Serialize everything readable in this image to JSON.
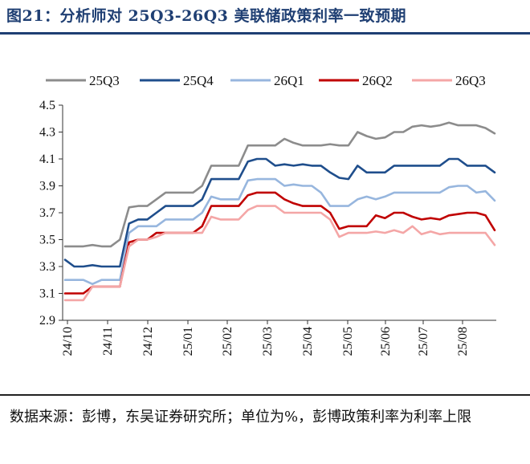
{
  "title": "图21：分析师对 25Q3-26Q3 美联储政策利率一致预期",
  "source": "数据来源：彭博，东吴证券研究所；单位为%，彭博政策利率为利率上限",
  "chart_data": {
    "type": "line",
    "ylim": [
      2.9,
      4.5
    ],
    "yticks": [
      "4.5",
      "4.3",
      "4.1",
      "3.9",
      "3.7",
      "3.5",
      "3.3",
      "3.1",
      "2.9"
    ],
    "xticks": [
      "24/10",
      "24/11",
      "24/12",
      "25/01",
      "25/02",
      "25/03",
      "25/04",
      "25/05",
      "25/06",
      "25/07",
      "25/08"
    ],
    "legend_position": "top",
    "grid": false,
    "series": [
      {
        "name": "25Q3",
        "color": "#8c8c8c",
        "values": [
          3.45,
          3.45,
          3.45,
          3.46,
          3.45,
          3.45,
          3.5,
          3.74,
          3.75,
          3.75,
          3.8,
          3.85,
          3.85,
          3.85,
          3.85,
          3.9,
          4.05,
          4.05,
          4.05,
          4.05,
          4.2,
          4.2,
          4.2,
          4.2,
          4.25,
          4.22,
          4.2,
          4.2,
          4.2,
          4.21,
          4.2,
          4.2,
          4.3,
          4.27,
          4.25,
          4.26,
          4.3,
          4.3,
          4.34,
          4.35,
          4.34,
          4.35,
          4.37,
          4.35,
          4.35,
          4.35,
          4.33,
          4.29
        ]
      },
      {
        "name": "25Q4",
        "color": "#1f4e8c",
        "values": [
          3.35,
          3.3,
          3.3,
          3.31,
          3.3,
          3.3,
          3.3,
          3.62,
          3.65,
          3.65,
          3.7,
          3.75,
          3.75,
          3.75,
          3.75,
          3.8,
          3.95,
          3.95,
          3.95,
          3.95,
          4.08,
          4.1,
          4.1,
          4.05,
          4.06,
          4.05,
          4.06,
          4.05,
          4.05,
          4.0,
          3.96,
          3.95,
          4.05,
          4.0,
          4.0,
          4.0,
          4.05,
          4.05,
          4.05,
          4.05,
          4.05,
          4.05,
          4.1,
          4.1,
          4.05,
          4.05,
          4.05,
          4.0
        ]
      },
      {
        "name": "26Q1",
        "color": "#97b6de",
        "values": [
          3.2,
          3.2,
          3.2,
          3.17,
          3.2,
          3.2,
          3.2,
          3.55,
          3.6,
          3.6,
          3.6,
          3.65,
          3.65,
          3.65,
          3.65,
          3.7,
          3.82,
          3.8,
          3.8,
          3.8,
          3.94,
          3.95,
          3.95,
          3.95,
          3.9,
          3.91,
          3.9,
          3.9,
          3.85,
          3.75,
          3.75,
          3.75,
          3.8,
          3.82,
          3.8,
          3.82,
          3.85,
          3.85,
          3.85,
          3.85,
          3.85,
          3.85,
          3.89,
          3.9,
          3.9,
          3.85,
          3.86,
          3.79
        ]
      },
      {
        "name": "26Q2",
        "color": "#c00000",
        "values": [
          3.1,
          3.1,
          3.1,
          3.15,
          3.15,
          3.15,
          3.15,
          3.48,
          3.5,
          3.5,
          3.55,
          3.55,
          3.55,
          3.55,
          3.55,
          3.6,
          3.75,
          3.75,
          3.75,
          3.75,
          3.83,
          3.85,
          3.85,
          3.85,
          3.8,
          3.77,
          3.75,
          3.75,
          3.75,
          3.7,
          3.58,
          3.6,
          3.6,
          3.6,
          3.68,
          3.66,
          3.7,
          3.7,
          3.67,
          3.65,
          3.66,
          3.65,
          3.68,
          3.69,
          3.7,
          3.7,
          3.68,
          3.57
        ]
      },
      {
        "name": "26Q3",
        "color": "#f4a6a6",
        "values": [
          3.05,
          3.05,
          3.05,
          3.15,
          3.15,
          3.15,
          3.15,
          3.45,
          3.5,
          3.5,
          3.52,
          3.55,
          3.55,
          3.55,
          3.55,
          3.55,
          3.67,
          3.65,
          3.65,
          3.65,
          3.72,
          3.75,
          3.75,
          3.75,
          3.7,
          3.7,
          3.7,
          3.7,
          3.7,
          3.65,
          3.52,
          3.55,
          3.55,
          3.55,
          3.56,
          3.55,
          3.57,
          3.55,
          3.6,
          3.54,
          3.56,
          3.54,
          3.55,
          3.55,
          3.55,
          3.55,
          3.55,
          3.46
        ]
      }
    ]
  }
}
